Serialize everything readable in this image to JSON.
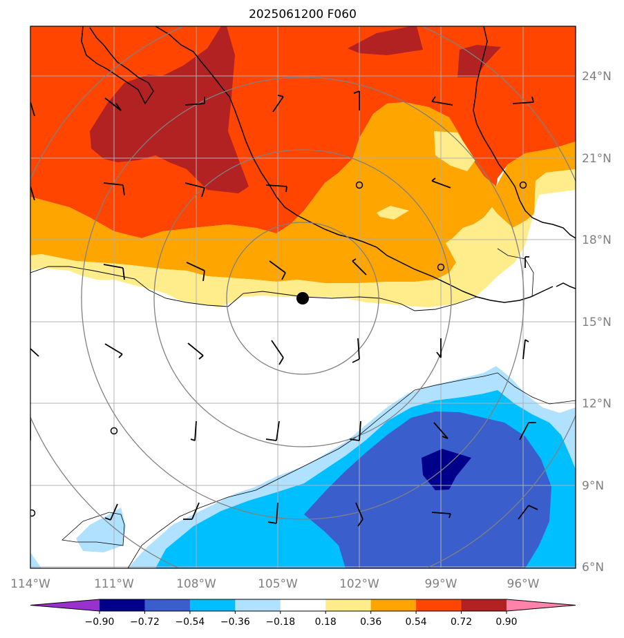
{
  "title": "2025061200 F060",
  "lon_labels": [
    "114°W",
    "111°W",
    "108°W",
    "105°W",
    "102°W",
    "99°W",
    "96°W"
  ],
  "lat_labels": [
    "6°N",
    "9°N",
    "12°N",
    "15°N",
    "18°N",
    "21°N",
    "24°N"
  ],
  "colorbar": {
    "colors": [
      "#9932cc",
      "#00008b",
      "#3a5fcd",
      "#00bfff",
      "#b0e2ff",
      "#ffffff",
      "#ffec8b",
      "#ffa500",
      "#ff4500",
      "#b22222",
      "#ff82ab"
    ],
    "labels": [
      "−0.90",
      "−0.72",
      "−0.54",
      "−0.36",
      "−0.18",
      "0.18",
      "0.36",
      "0.54",
      "0.72",
      "0.90"
    ]
  },
  "map": {
    "extent": {
      "lon_min": -114,
      "lon_max": -94,
      "lat_min": 6,
      "lat_max": 26
    },
    "center_marker": {
      "lon": -104,
      "lat": 15.8
    },
    "range_rings_deg": [
      2.7,
      5.4,
      8.1,
      10.8
    ]
  }
}
